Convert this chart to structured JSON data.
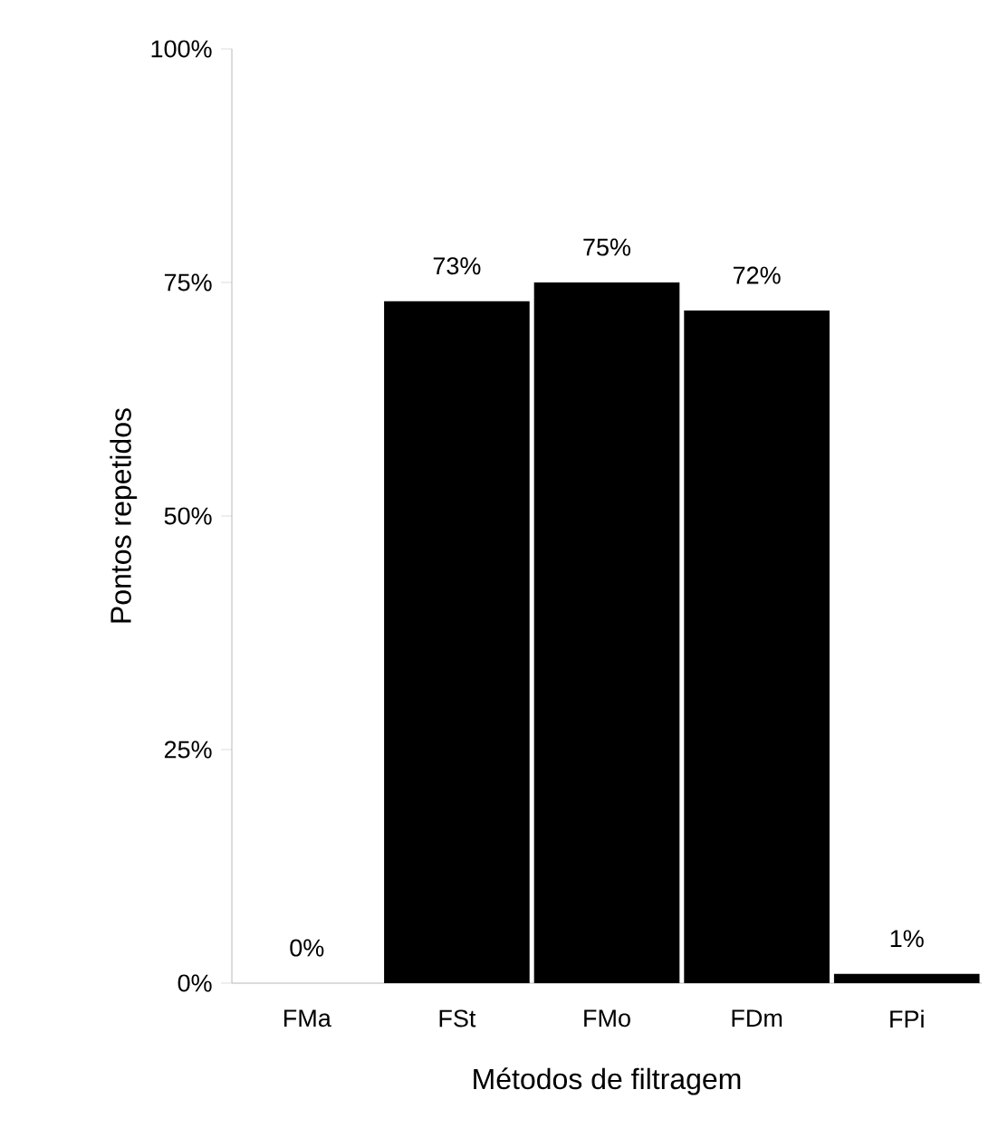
{
  "chart_data": {
    "type": "bar",
    "xlabel": "Métodos de filtragem",
    "ylabel": "Pontos repetidos",
    "categories": [
      "FMa",
      "FSt",
      "FMo",
      "FDm",
      "FPi"
    ],
    "values": [
      0,
      73,
      75,
      72,
      1
    ],
    "value_labels": [
      "0%",
      "73%",
      "75%",
      "72%",
      "1%"
    ],
    "color": "#000000",
    "ylim": [
      0,
      100
    ],
    "yticks": [
      {
        "value": 0,
        "label": "0%"
      },
      {
        "value": 25,
        "label": "25%"
      },
      {
        "value": 50,
        "label": "50%"
      },
      {
        "value": 75,
        "label": "75%"
      },
      {
        "value": 100,
        "label": "100%"
      }
    ],
    "grid": false
  }
}
